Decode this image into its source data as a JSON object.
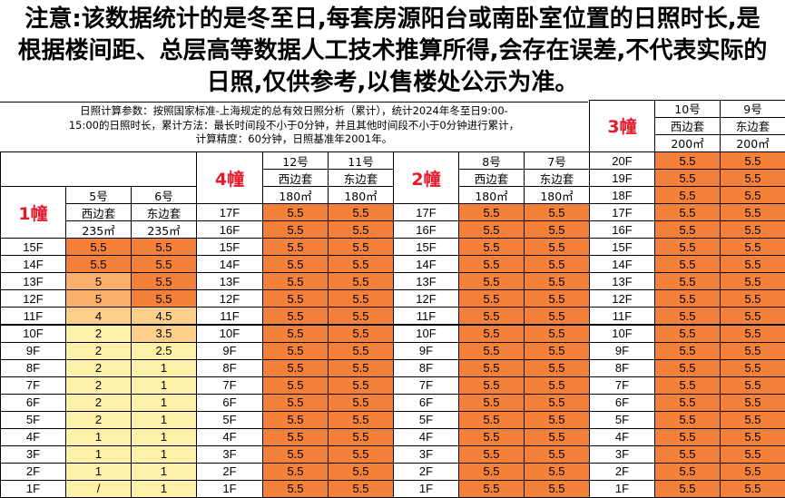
{
  "notice": {
    "line1": "注意:该数据统计的是冬至日,每套房源阳台或南卧室位置的日照时长,是",
    "line2": "根据楼间距、总层高等数据人工技术推算所得,会存在误差,不代表实际的",
    "line3": "日照,仅供参考,以售楼处公示为准。"
  },
  "params": {
    "line1": "日照计算参数：按照国家标准-上海规定的总有效日照分析（累计），统计2024年冬至日9:00-",
    "line2": "15:00的日照时长，累计方法：最长时间段不小于0分钟，并且其他时间段不小于0分钟进行累计，",
    "line3": "计算精度：60分钟，日照基准年2001年。"
  },
  "colors": {
    "low": "#fff2a8",
    "mid": "#fdd08a",
    "high": "#f8b06a",
    "highest": "#f4813a",
    "building_label": "#e8182a"
  },
  "buildings": {
    "b1": {
      "label": "1幢",
      "units": [
        {
          "no": "5号",
          "side": "西边套",
          "area": "235㎡"
        },
        {
          "no": "6号",
          "side": "东边套",
          "area": "235㎡"
        }
      ],
      "floors": [
        "15F",
        "14F",
        "13F",
        "12F",
        "11F",
        "10F",
        "9F",
        "8F",
        "7F",
        "6F",
        "5F",
        "4F",
        "3F",
        "2F",
        "1F"
      ],
      "values": [
        [
          "5.5",
          "5.5"
        ],
        [
          "5.5",
          "5.5"
        ],
        [
          "5",
          "5.5"
        ],
        [
          "5",
          "5.5"
        ],
        [
          "4",
          "4.5"
        ],
        [
          "2",
          "3.5"
        ],
        [
          "2",
          "2.5"
        ],
        [
          "2",
          "1"
        ],
        [
          "2",
          "1"
        ],
        [
          "2",
          "1"
        ],
        [
          "2",
          "1"
        ],
        [
          "1",
          "1"
        ],
        [
          "1",
          "1"
        ],
        [
          "1",
          "1"
        ],
        [
          "/",
          "1"
        ]
      ]
    },
    "b4": {
      "label": "4幢",
      "units": [
        {
          "no": "12号",
          "side": "西边套",
          "area": "180㎡"
        },
        {
          "no": "11号",
          "side": "东边套",
          "area": "180㎡"
        }
      ],
      "floors": [
        "17F",
        "16F",
        "15F",
        "14F",
        "13F",
        "12F",
        "11F",
        "10F",
        "9F",
        "8F",
        "7F",
        "6F",
        "5F",
        "4F",
        "3F",
        "2F",
        "1F"
      ]
    },
    "b2": {
      "label": "2幢",
      "units": [
        {
          "no": "8号",
          "side": "西边套",
          "area": "180㎡"
        },
        {
          "no": "7号",
          "side": "东边套",
          "area": "180㎡"
        }
      ],
      "floors": [
        "17F",
        "16F",
        "15F",
        "14F",
        "13F",
        "12F",
        "11F",
        "10F",
        "9F",
        "8F",
        "7F",
        "6F",
        "5F",
        "4F",
        "3F",
        "2F",
        "1F"
      ]
    },
    "b3": {
      "label": "3幢",
      "units": [
        {
          "no": "10号",
          "side": "西边套",
          "area": "200㎡"
        },
        {
          "no": "9号",
          "side": "东边套",
          "area": "200㎡"
        }
      ],
      "floors": [
        "20F",
        "19F",
        "18F",
        "17F",
        "16F",
        "15F",
        "14F",
        "13F",
        "12F",
        "11F",
        "10F",
        "9F",
        "8F",
        "7F",
        "6F",
        "5F",
        "4F",
        "3F",
        "2F",
        "1F"
      ]
    },
    "full_value": "5.5"
  }
}
